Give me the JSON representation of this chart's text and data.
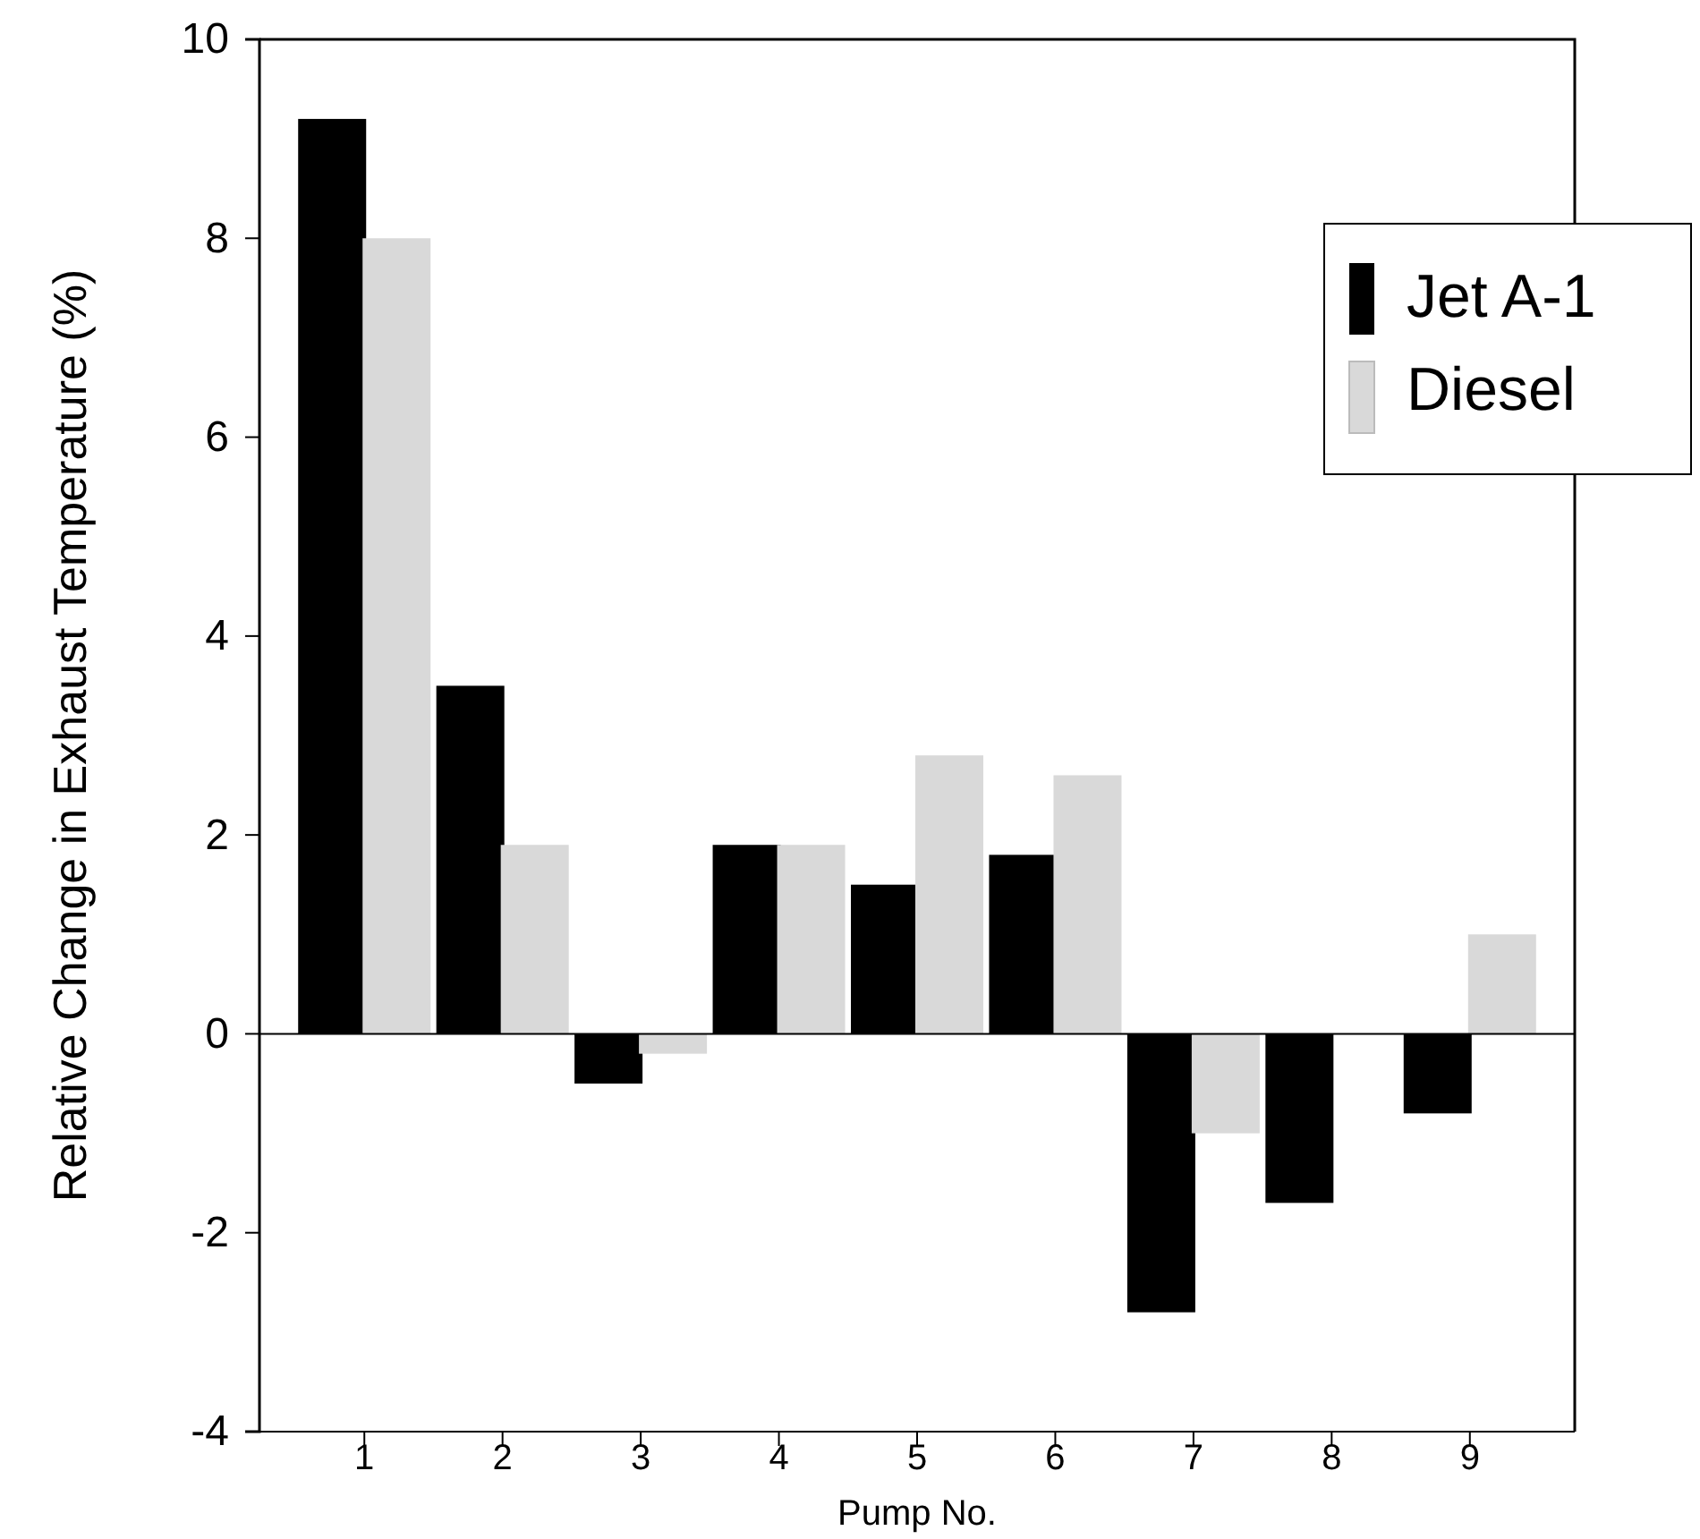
{
  "chart_data": {
    "type": "bar",
    "xlabel": "Pump No.",
    "ylabel": "Relative Change in Exhaust Temperature (%)",
    "categories": [
      "1",
      "2",
      "3",
      "4",
      "5",
      "6",
      "7",
      "8",
      "9"
    ],
    "series": [
      {
        "name": "Jet A-1",
        "color": "#000000",
        "values": [
          9.2,
          3.5,
          -0.5,
          1.9,
          1.5,
          1.8,
          -2.8,
          -1.7,
          -0.8
        ]
      },
      {
        "name": "Diesel",
        "color": "#d9d9d9",
        "values": [
          8.0,
          1.9,
          -0.2,
          1.9,
          2.8,
          2.6,
          -1.0,
          0,
          1.0
        ]
      }
    ],
    "ylim": [
      -4,
      10
    ],
    "yticks": [
      -4,
      -2,
      0,
      2,
      4,
      6,
      8,
      10
    ],
    "ref_lines": [
      {
        "axis": "y",
        "value": 0,
        "color": "#000000"
      }
    ],
    "legend": "right"
  }
}
